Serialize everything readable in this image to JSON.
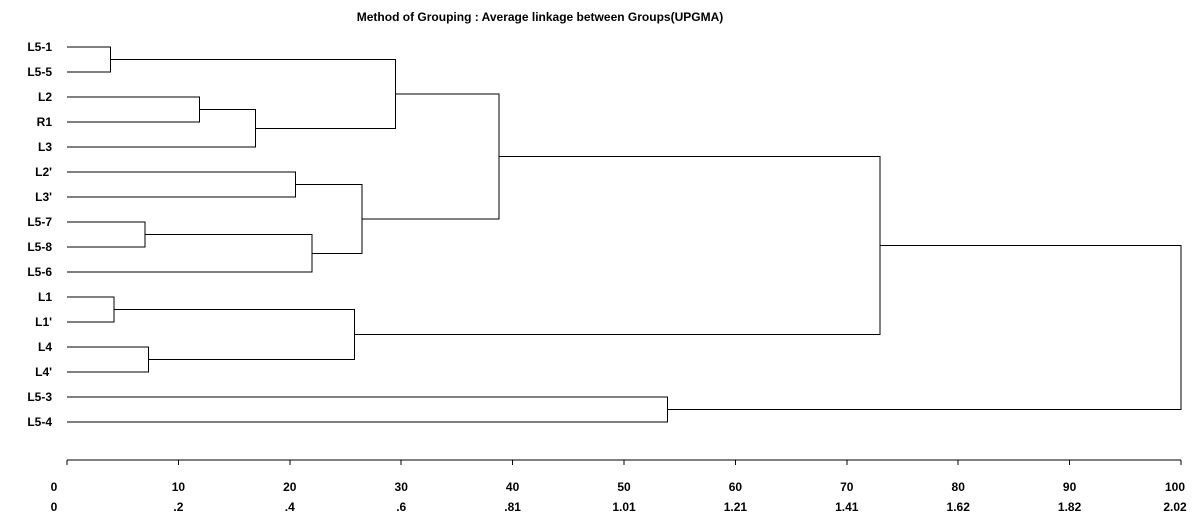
{
  "title": "Method of Grouping : Average linkage between Groups(UPGMA)",
  "leaves": [
    "L5-1",
    "L5-5",
    "L2",
    "R1",
    "L3",
    "L2'",
    "L3'",
    "L5-7",
    "L5-8",
    "L5-6",
    "L1",
    "L1'",
    "L4",
    "L4'",
    "L5-3",
    "L5-4"
  ],
  "axis": {
    "range": [
      0,
      100
    ],
    "ticks": [
      0,
      10,
      20,
      30,
      40,
      50,
      60,
      70,
      80,
      90,
      100
    ],
    "tick_labels": [
      "0",
      "10",
      "20",
      "30",
      "40",
      "50",
      "60",
      "70",
      "80",
      "90",
      "100"
    ],
    "distance_labels": [
      "0",
      ".2",
      ".4",
      ".6",
      ".81",
      "1.01",
      "1.21",
      "1.41",
      "1.62",
      "1.82",
      "2.02"
    ]
  },
  "merges": [
    {
      "id": "m1",
      "children": [
        "L5-1",
        "L5-5"
      ],
      "height": 3.9
    },
    {
      "id": "m2",
      "children": [
        "L2",
        "R1"
      ],
      "height": 11.9
    },
    {
      "id": "m3",
      "children": [
        "m2",
        "L3"
      ],
      "height": 16.9
    },
    {
      "id": "m4",
      "children": [
        "m1",
        "m3"
      ],
      "height": 29.5
    },
    {
      "id": "m5",
      "children": [
        "L2'",
        "L3'"
      ],
      "height": 20.5
    },
    {
      "id": "m6",
      "children": [
        "L5-7",
        "L5-8"
      ],
      "height": 7.0
    },
    {
      "id": "m7",
      "children": [
        "m6",
        "L5-6"
      ],
      "height": 22.0
    },
    {
      "id": "m8",
      "children": [
        "m5",
        "m7"
      ],
      "height": 26.5
    },
    {
      "id": "m9",
      "children": [
        "m4",
        "m8"
      ],
      "height": 38.8
    },
    {
      "id": "m10",
      "children": [
        "L1",
        "L1'"
      ],
      "height": 4.2
    },
    {
      "id": "m11",
      "children": [
        "L4",
        "L4'"
      ],
      "height": 7.3
    },
    {
      "id": "m12",
      "children": [
        "m10",
        "m11"
      ],
      "height": 25.8
    },
    {
      "id": "m13",
      "children": [
        "m9",
        "m12"
      ],
      "height": 73.0
    },
    {
      "id": "m14",
      "children": [
        "L5-3",
        "L5-4"
      ],
      "height": 53.9
    },
    {
      "id": "m15",
      "children": [
        "m13",
        "m14"
      ],
      "height": 100.0
    }
  ]
}
